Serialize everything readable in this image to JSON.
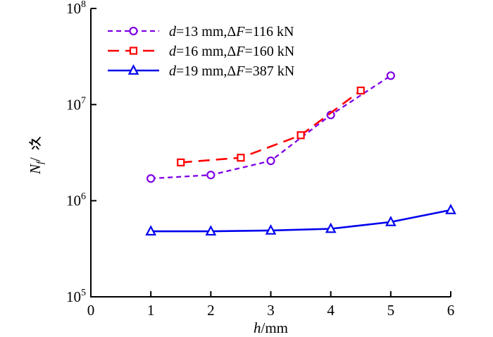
{
  "chart_data": {
    "type": "line",
    "title": "",
    "xlabel": "h/mm",
    "ylabel": {
      "symbol": "N",
      "subscript": "f",
      "suffix_slash": "/",
      "suffix_cjk": "次"
    },
    "xlim": [
      0,
      6
    ],
    "ylim_exponents": [
      5,
      8
    ],
    "x_ticks": [
      "0",
      "1",
      "2",
      "3",
      "4",
      "5",
      "6"
    ],
    "y_tick_base": "10",
    "y_tick_exponents": [
      "5",
      "6",
      "7",
      "8"
    ],
    "grid": false,
    "legend_position": "top-left-inside",
    "axis_color": "#000000",
    "series": [
      {
        "name": "d=13 mm,ΔF=116 kN",
        "color": "#7F00E8",
        "line_style": "short-dash",
        "marker": "circle",
        "x": [
          1,
          2,
          3,
          4,
          5
        ],
        "y": [
          1700000,
          1850000,
          2600000,
          7800000,
          20000000
        ]
      },
      {
        "name": "d=16 mm,ΔF=160 kN",
        "color": "#FF0000",
        "line_style": "long-dash",
        "marker": "square",
        "x": [
          1.5,
          2.5,
          3.5,
          4.5
        ],
        "y": [
          2500000,
          2800000,
          4800000,
          14000000
        ]
      },
      {
        "name": "d=19 mm,ΔF=387 kN",
        "color": "#0000EE",
        "line_style": "solid",
        "marker": "triangle",
        "x": [
          1,
          2,
          3,
          4,
          5,
          6
        ],
        "y": [
          480000,
          480000,
          490000,
          510000,
          600000,
          800000
        ]
      }
    ]
  }
}
